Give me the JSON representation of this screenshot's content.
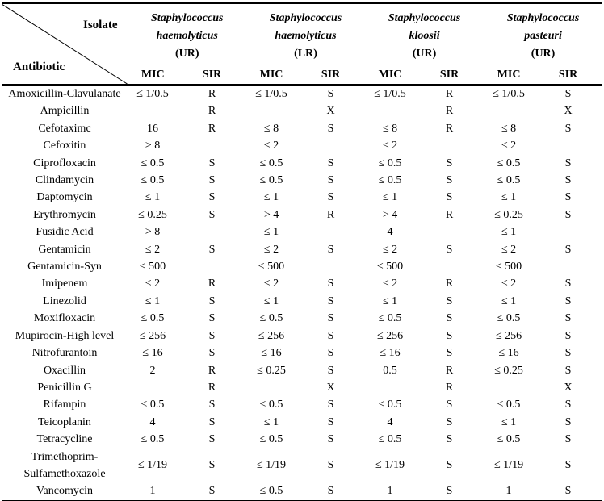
{
  "table": {
    "corner": {
      "top_right_label": "Isolate",
      "bottom_left_label": "Antibiotic"
    },
    "species": [
      {
        "name": "Staphylococcus\nhaemolyticus",
        "source": "(UR)"
      },
      {
        "name": "Staphylococcus\nhaemolyticus",
        "source": "(LR)"
      },
      {
        "name": "Staphylococcus\nkloosii",
        "source": "(UR)"
      },
      {
        "name": "Staphylococcus\npasteuri",
        "source": "(UR)"
      }
    ],
    "subheaders": [
      "MIC",
      "SIR",
      "MIC",
      "SIR",
      "MIC",
      "SIR",
      "MIC",
      "SIR"
    ],
    "rows": [
      {
        "antibiotic": "Amoxicillin-Clavulanate",
        "values": [
          "≤ 1/0.5",
          "R",
          "≤ 1/0.5",
          "S",
          "≤ 1/0.5",
          "R",
          "≤ 1/0.5",
          "S"
        ]
      },
      {
        "antibiotic": "Ampicillin",
        "values": [
          "",
          "R",
          "",
          "X",
          "",
          "R",
          "",
          "X"
        ]
      },
      {
        "antibiotic": "Cefotaximc",
        "values": [
          "16",
          "R",
          "≤ 8",
          "S",
          "≤ 8",
          "R",
          "≤ 8",
          "S"
        ]
      },
      {
        "antibiotic": "Cefoxitin",
        "values": [
          "> 8",
          "",
          "≤ 2",
          "",
          "≤ 2",
          "",
          "≤ 2",
          ""
        ]
      },
      {
        "antibiotic": "Ciprofloxacin",
        "values": [
          "≤ 0.5",
          "S",
          "≤ 0.5",
          "S",
          "≤ 0.5",
          "S",
          "≤ 0.5",
          "S"
        ]
      },
      {
        "antibiotic": "Clindamycin",
        "values": [
          "≤ 0.5",
          "S",
          "≤ 0.5",
          "S",
          "≤ 0.5",
          "S",
          "≤ 0.5",
          "S"
        ]
      },
      {
        "antibiotic": "Daptomycin",
        "values": [
          "≤ 1",
          "S",
          "≤ 1",
          "S",
          "≤ 1",
          "S",
          "≤ 1",
          "S"
        ]
      },
      {
        "antibiotic": "Erythromycin",
        "values": [
          "≤ 0.25",
          "S",
          "> 4",
          "R",
          "> 4",
          "R",
          "≤ 0.25",
          "S"
        ]
      },
      {
        "antibiotic": "Fusidic Acid",
        "values": [
          "> 8",
          "",
          "≤ 1",
          "",
          "4",
          "",
          "≤ 1",
          ""
        ]
      },
      {
        "antibiotic": "Gentamicin",
        "values": [
          "≤ 2",
          "S",
          "≤ 2",
          "S",
          "≤ 2",
          "S",
          "≤ 2",
          "S"
        ]
      },
      {
        "antibiotic": "Gentamicin-Syn",
        "values": [
          "≤ 500",
          "",
          "≤ 500",
          "",
          "≤ 500",
          "",
          "≤ 500",
          ""
        ]
      },
      {
        "antibiotic": "Imipenem",
        "values": [
          "≤ 2",
          "R",
          "≤ 2",
          "S",
          "≤ 2",
          "R",
          "≤ 2",
          "S"
        ]
      },
      {
        "antibiotic": "Linezolid",
        "values": [
          "≤ 1",
          "S",
          "≤ 1",
          "S",
          "≤ 1",
          "S",
          "≤ 1",
          "S"
        ]
      },
      {
        "antibiotic": "Moxifloxacin",
        "values": [
          "≤ 0.5",
          "S",
          "≤ 0.5",
          "S",
          "≤ 0.5",
          "S",
          "≤ 0.5",
          "S"
        ]
      },
      {
        "antibiotic": "Mupirocin-High level",
        "values": [
          "≤ 256",
          "S",
          "≤ 256",
          "S",
          "≤ 256",
          "S",
          "≤ 256",
          "S"
        ]
      },
      {
        "antibiotic": "Nitrofurantoin",
        "values": [
          "≤ 16",
          "S",
          "≤ 16",
          "S",
          "≤ 16",
          "S",
          "≤ 16",
          "S"
        ]
      },
      {
        "antibiotic": "Oxacillin",
        "values": [
          "2",
          "R",
          "≤ 0.25",
          "S",
          "0.5",
          "R",
          "≤ 0.25",
          "S"
        ]
      },
      {
        "antibiotic": "Penicillin G",
        "values": [
          "",
          "R",
          "",
          "X",
          "",
          "R",
          "",
          "X"
        ]
      },
      {
        "antibiotic": "Rifampin",
        "values": [
          "≤ 0.5",
          "S",
          "≤ 0.5",
          "S",
          "≤ 0.5",
          "S",
          "≤ 0.5",
          "S"
        ]
      },
      {
        "antibiotic": "Teicoplanin",
        "values": [
          "4",
          "S",
          "≤ 1",
          "S",
          "4",
          "S",
          "≤ 1",
          "S"
        ]
      },
      {
        "antibiotic": "Tetracycline",
        "values": [
          "≤ 0.5",
          "S",
          "≤ 0.5",
          "S",
          "≤ 0.5",
          "S",
          "≤ 0.5",
          "S"
        ]
      },
      {
        "antibiotic": "Trimethoprim-\nSulfamethoxazole",
        "values": [
          "≤ 1/19",
          "S",
          "≤ 1/19",
          "S",
          "≤ 1/19",
          "S",
          "≤ 1/19",
          "S"
        ]
      },
      {
        "antibiotic": "Vancomycin",
        "values": [
          "1",
          "S",
          "≤ 0.5",
          "S",
          "1",
          "S",
          "1",
          "S"
        ]
      }
    ]
  }
}
